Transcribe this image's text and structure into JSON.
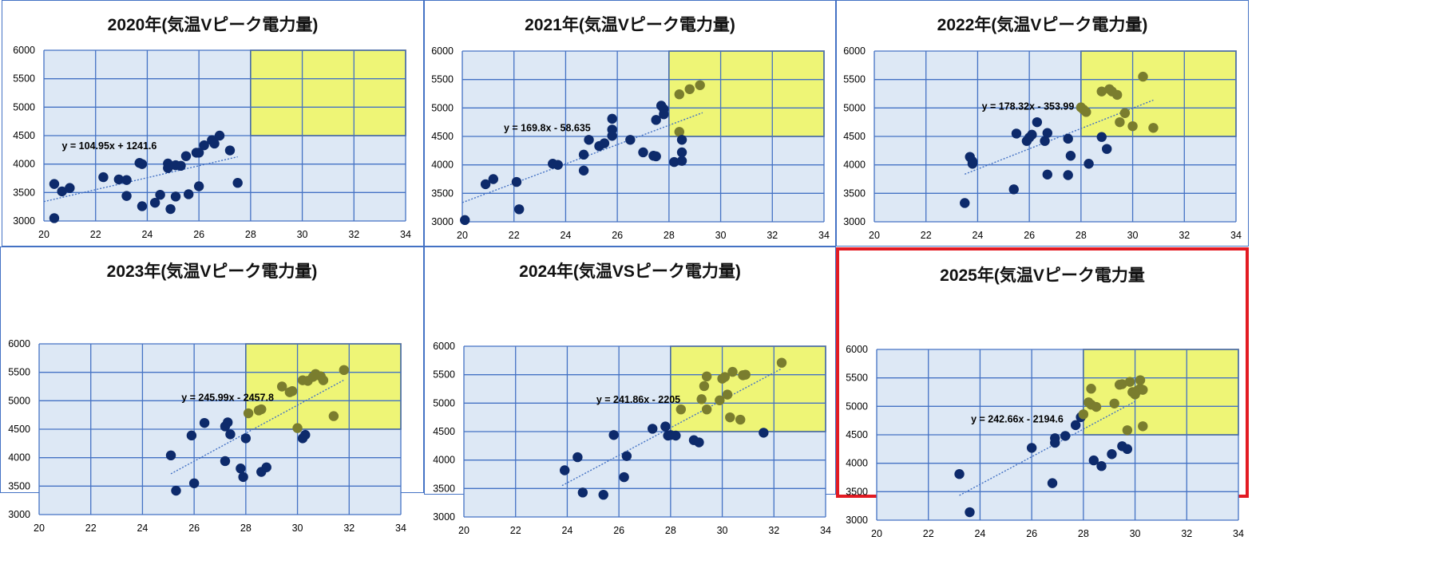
{
  "colors": {
    "plot_bg": "#dde8f5",
    "grid": "#4472c4",
    "highlight_fill": "#eef576",
    "highlight_stroke": "#333333",
    "point": "#0d2a6b",
    "point_in_highlight": "#7a7d2e",
    "trendline": "#4472c4",
    "selected_border": "#e31b23"
  },
  "chart_data": [
    {
      "type": "scatter",
      "title": "2020年(気温Vピーク電力量)",
      "xlim": [
        20,
        34
      ],
      "ylim": [
        3000,
        6000
      ],
      "xticks": [
        "20",
        "22",
        "24",
        "26",
        "28",
        "30",
        "32",
        "34"
      ],
      "yticks": [
        "3000",
        "3500",
        "4000",
        "4500",
        "5000",
        "5500",
        "6000"
      ],
      "grid": true,
      "highlight_region": {
        "x": [
          28,
          34
        ],
        "y": [
          4500,
          6000
        ]
      },
      "trendline": {
        "label": "y = 104.95x + 1241.6",
        "slope": 104.95,
        "intercept": 1241.6,
        "x_range": [
          20,
          27.5
        ],
        "style": "dotted"
      },
      "selected": false,
      "points": [
        [
          20.4,
          3650
        ],
        [
          20.4,
          3050
        ],
        [
          20.7,
          3520
        ],
        [
          21.0,
          3580
        ],
        [
          22.3,
          3770
        ],
        [
          22.9,
          3730
        ],
        [
          23.2,
          3720
        ],
        [
          23.2,
          3440
        ],
        [
          23.7,
          4020
        ],
        [
          23.8,
          4000
        ],
        [
          23.8,
          3260
        ],
        [
          24.3,
          3320
        ],
        [
          24.5,
          3460
        ],
        [
          24.8,
          4010
        ],
        [
          24.8,
          3930
        ],
        [
          24.9,
          3210
        ],
        [
          25.1,
          3980
        ],
        [
          25.1,
          3430
        ],
        [
          25.3,
          3970
        ],
        [
          25.5,
          4140
        ],
        [
          25.6,
          3470
        ],
        [
          25.9,
          4200
        ],
        [
          26.0,
          4200
        ],
        [
          26.0,
          3610
        ],
        [
          26.2,
          4330
        ],
        [
          26.5,
          4420
        ],
        [
          26.6,
          4360
        ],
        [
          26.8,
          4500
        ],
        [
          27.2,
          4240
        ],
        [
          27.5,
          3670
        ]
      ]
    },
    {
      "type": "scatter",
      "title": "2021年(気温Vピーク電力量)",
      "xlim": [
        20,
        34
      ],
      "ylim": [
        3000,
        6000
      ],
      "xticks": [
        "20",
        "22",
        "24",
        "26",
        "28",
        "30",
        "32",
        "34"
      ],
      "yticks": [
        "3000",
        "3500",
        "4000",
        "4500",
        "5000",
        "5500",
        "6000"
      ],
      "grid": true,
      "highlight_region": {
        "x": [
          28,
          34
        ],
        "y": [
          4500,
          6000
        ]
      },
      "trendline": {
        "label": "y = 169.8x - 58.635",
        "slope": 169.8,
        "intercept": -58.635,
        "x_range": [
          20,
          29.3
        ],
        "style": "dotted"
      },
      "selected": false,
      "points": [
        [
          20.1,
          3030
        ],
        [
          20.9,
          3660
        ],
        [
          21.2,
          3750
        ],
        [
          22.1,
          3700
        ],
        [
          22.2,
          3220
        ],
        [
          23.5,
          4020
        ],
        [
          23.7,
          4000
        ],
        [
          24.7,
          3900
        ],
        [
          24.7,
          4180
        ],
        [
          24.9,
          4440
        ],
        [
          25.3,
          4330
        ],
        [
          25.5,
          4380
        ],
        [
          25.8,
          4810
        ],
        [
          25.8,
          4620
        ],
        [
          25.8,
          4510
        ],
        [
          26.5,
          4440
        ],
        [
          27.0,
          4220
        ],
        [
          27.4,
          4160
        ],
        [
          27.5,
          4150
        ],
        [
          27.5,
          4790
        ],
        [
          27.7,
          5040
        ],
        [
          27.8,
          4980
        ],
        [
          27.8,
          4890
        ],
        [
          28.2,
          4050
        ],
        [
          28.4,
          5240
        ],
        [
          28.4,
          4580
        ],
        [
          28.5,
          4440
        ],
        [
          28.5,
          4220
        ],
        [
          28.5,
          4070
        ],
        [
          28.8,
          5330
        ],
        [
          29.2,
          5400
        ]
      ]
    },
    {
      "type": "scatter",
      "title": "2022年(気温Vピーク電力量)",
      "xlim": [
        20,
        34
      ],
      "ylim": [
        3000,
        6000
      ],
      "xticks": [
        "20",
        "22",
        "24",
        "26",
        "28",
        "30",
        "32",
        "34"
      ],
      "yticks": [
        "3000",
        "3500",
        "4000",
        "4500",
        "5000",
        "5500",
        "6000"
      ],
      "grid": true,
      "highlight_region": {
        "x": [
          28,
          34
        ],
        "y": [
          4500,
          6000
        ]
      },
      "trendline": {
        "label": "y = 178.32x - 353.99",
        "slope": 178.32,
        "intercept": -353.99,
        "x_range": [
          23.5,
          30.8
        ],
        "style": "dotted"
      },
      "selected": false,
      "points": [
        [
          23.5,
          3330
        ],
        [
          23.7,
          4140
        ],
        [
          23.8,
          4060
        ],
        [
          23.8,
          4020
        ],
        [
          25.4,
          3570
        ],
        [
          25.5,
          4550
        ],
        [
          25.9,
          4420
        ],
        [
          26.0,
          4480
        ],
        [
          26.1,
          4530
        ],
        [
          26.3,
          4750
        ],
        [
          26.6,
          4420
        ],
        [
          26.7,
          4560
        ],
        [
          26.7,
          3830
        ],
        [
          27.5,
          4460
        ],
        [
          27.6,
          4160
        ],
        [
          27.5,
          3820
        ],
        [
          28.0,
          5010
        ],
        [
          28.1,
          4970
        ],
        [
          28.2,
          4930
        ],
        [
          28.3,
          4020
        ],
        [
          28.8,
          4490
        ],
        [
          28.8,
          5290
        ],
        [
          29.0,
          4280
        ],
        [
          29.1,
          5330
        ],
        [
          29.2,
          5290
        ],
        [
          29.4,
          5230
        ],
        [
          29.5,
          4750
        ],
        [
          29.7,
          4910
        ],
        [
          30.0,
          4680
        ],
        [
          30.4,
          5550
        ],
        [
          30.8,
          4650
        ]
      ]
    },
    {
      "type": "scatter",
      "title": "2023年(気温Vピーク電力量)",
      "xlim": [
        20,
        34
      ],
      "ylim": [
        3000,
        6000
      ],
      "xticks": [
        "20",
        "22",
        "24",
        "26",
        "28",
        "30",
        "32",
        "34"
      ],
      "yticks": [
        "3000",
        "3500",
        "4000",
        "4500",
        "5000",
        "5500",
        "6000"
      ],
      "grid": true,
      "highlight_region": {
        "x": [
          28,
          34
        ],
        "y": [
          4500,
          6000
        ]
      },
      "trendline": {
        "label": "y = 245.99x - 2457.8",
        "slope": 245.99,
        "intercept": -2457.8,
        "x_range": [
          25.1,
          31.8
        ],
        "style": "dotted"
      },
      "selected": false,
      "points": [
        [
          25.1,
          4040
        ],
        [
          25.3,
          3420
        ],
        [
          25.9,
          4390
        ],
        [
          26.0,
          3550
        ],
        [
          26.4,
          4610
        ],
        [
          27.2,
          4550
        ],
        [
          27.2,
          3940
        ],
        [
          27.3,
          4620
        ],
        [
          27.4,
          4410
        ],
        [
          27.8,
          3810
        ],
        [
          27.9,
          3660
        ],
        [
          28.0,
          4340
        ],
        [
          28.1,
          4780
        ],
        [
          28.5,
          4830
        ],
        [
          28.6,
          4850
        ],
        [
          28.6,
          3750
        ],
        [
          28.8,
          3830
        ],
        [
          29.4,
          5250
        ],
        [
          29.7,
          5150
        ],
        [
          29.8,
          5170
        ],
        [
          30.0,
          4520
        ],
        [
          30.2,
          4340
        ],
        [
          30.2,
          5360
        ],
        [
          30.3,
          4400
        ],
        [
          30.4,
          5350
        ],
        [
          30.6,
          5420
        ],
        [
          30.7,
          5470
        ],
        [
          30.9,
          5430
        ],
        [
          31.0,
          5360
        ],
        [
          31.4,
          4730
        ],
        [
          31.8,
          5540
        ]
      ]
    },
    {
      "type": "scatter",
      "title": "2024年(気温VSピーク電力量)",
      "xlim": [
        20,
        34
      ],
      "ylim": [
        3000,
        6000
      ],
      "xticks": [
        "20",
        "22",
        "24",
        "26",
        "28",
        "30",
        "32",
        "34"
      ],
      "yticks": [
        "3000",
        "3500",
        "4000",
        "4500",
        "5000",
        "5500",
        "6000"
      ],
      "grid": true,
      "highlight_region": {
        "x": [
          28,
          34
        ],
        "y": [
          4500,
          6000
        ]
      },
      "trendline": {
        "label": "y = 241.86x - 2205",
        "slope": 241.86,
        "intercept": -2205,
        "x_range": [
          23.8,
          32.3
        ],
        "style": "dotted"
      },
      "selected": false,
      "points": [
        [
          23.9,
          3820
        ],
        [
          24.4,
          4050
        ],
        [
          24.6,
          3430
        ],
        [
          25.4,
          3390
        ],
        [
          25.8,
          4440
        ],
        [
          26.2,
          3700
        ],
        [
          26.3,
          4070
        ],
        [
          27.3,
          4550
        ],
        [
          27.8,
          4590
        ],
        [
          27.9,
          4430
        ],
        [
          28.0,
          4440
        ],
        [
          28.2,
          4430
        ],
        [
          28.4,
          4890
        ],
        [
          28.9,
          4350
        ],
        [
          29.1,
          4310
        ],
        [
          29.2,
          5070
        ],
        [
          29.3,
          5300
        ],
        [
          29.4,
          5470
        ],
        [
          29.4,
          4890
        ],
        [
          29.9,
          5050
        ],
        [
          30.0,
          5430
        ],
        [
          30.1,
          5460
        ],
        [
          30.2,
          5150
        ],
        [
          30.3,
          4750
        ],
        [
          30.4,
          5550
        ],
        [
          30.7,
          4710
        ],
        [
          30.8,
          5490
        ],
        [
          30.9,
          5500
        ],
        [
          31.6,
          4480
        ],
        [
          32.3,
          5710
        ]
      ]
    },
    {
      "type": "scatter",
      "title": "2025年(気温Vピーク電力量",
      "xlim": [
        20,
        34
      ],
      "ylim": [
        3000,
        6000
      ],
      "xticks": [
        "20",
        "22",
        "24",
        "26",
        "28",
        "30",
        "32",
        "34"
      ],
      "yticks": [
        "3000",
        "3500",
        "4000",
        "4500",
        "5000",
        "5500",
        "6000"
      ],
      "grid": true,
      "highlight_region": {
        "x": [
          28,
          34
        ],
        "y": [
          4500,
          6000
        ]
      },
      "trendline": {
        "label": "y = 242.66x - 2194.6",
        "slope": 242.66,
        "intercept": -2194.6,
        "x_range": [
          23.2,
          30.0
        ],
        "style": "dotted"
      },
      "selected": true,
      "points": [
        [
          23.2,
          3810
        ],
        [
          23.6,
          3140
        ],
        [
          26.0,
          4270
        ],
        [
          26.8,
          3650
        ],
        [
          26.9,
          4440
        ],
        [
          26.9,
          4360
        ],
        [
          27.3,
          4480
        ],
        [
          27.7,
          4670
        ],
        [
          27.9,
          4810
        ],
        [
          28.0,
          4860
        ],
        [
          28.2,
          5070
        ],
        [
          28.3,
          5310
        ],
        [
          28.3,
          5030
        ],
        [
          28.4,
          4050
        ],
        [
          28.5,
          4990
        ],
        [
          28.7,
          3950
        ],
        [
          29.1,
          4160
        ],
        [
          29.2,
          5050
        ],
        [
          29.4,
          5380
        ],
        [
          29.5,
          5390
        ],
        [
          29.5,
          4300
        ],
        [
          29.7,
          4250
        ],
        [
          29.7,
          4580
        ],
        [
          29.8,
          5430
        ],
        [
          29.9,
          5250
        ],
        [
          30.0,
          5210
        ],
        [
          30.1,
          5280
        ],
        [
          30.2,
          5460
        ],
        [
          30.2,
          5310
        ],
        [
          30.3,
          5290
        ],
        [
          30.3,
          4650
        ]
      ]
    }
  ]
}
